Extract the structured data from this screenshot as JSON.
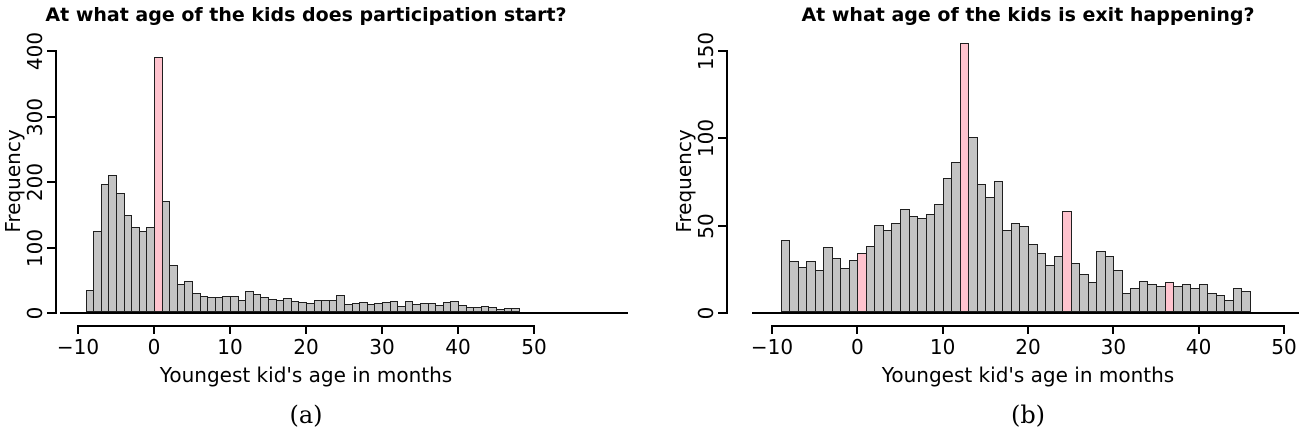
{
  "figure": {
    "background": "#ffffff",
    "text_color": "#000000"
  },
  "chart_data": [
    {
      "type": "bar",
      "subtype": "histogram",
      "title": "At what age of the kids does participation start?",
      "xlabel": "Youngest kid's age in months",
      "ylabel": "Frequency",
      "caption": "(a)",
      "xlim": [
        -10,
        50
      ],
      "ylim": [
        0,
        400
      ],
      "x_ticks": [
        -10,
        0,
        10,
        20,
        30,
        40,
        50
      ],
      "y_ticks": [
        0,
        100,
        200,
        300,
        400
      ],
      "grid": false,
      "legend": false,
      "bin_width": 1,
      "first_bin_start": -9,
      "values": [
        33,
        123,
        196,
        209,
        181,
        148,
        130,
        124,
        130,
        390,
        169,
        71,
        43,
        47,
        29,
        25,
        23,
        23,
        24,
        24,
        19,
        32,
        28,
        23,
        20,
        19,
        22,
        17,
        16,
        13,
        18,
        19,
        18,
        26,
        12,
        14,
        16,
        12,
        14,
        16,
        17,
        9,
        17,
        12,
        14,
        13,
        10,
        15,
        17,
        10,
        7,
        7,
        9,
        8,
        4,
        6,
        6
      ],
      "highlight_bin_starts": [
        0
      ],
      "colors": {
        "bar_fill": "#c4c4c4",
        "bar_border": "#1f1f1f",
        "highlight_fill": "#ffc3ce",
        "axis": "#000000"
      }
    },
    {
      "type": "bar",
      "subtype": "histogram",
      "title": "At what age of the kids is exit happening?",
      "xlabel": "Youngest kid's age in months",
      "ylabel": "Frequency",
      "caption": "(b)",
      "xlim": [
        -10,
        50
      ],
      "ylim": [
        0,
        150
      ],
      "x_ticks": [
        -10,
        0,
        10,
        20,
        30,
        40,
        50
      ],
      "y_ticks": [
        0,
        50,
        100,
        150
      ],
      "grid": false,
      "legend": false,
      "bin_width": 1,
      "first_bin_start": -9,
      "values": [
        41,
        29,
        26,
        29,
        24,
        37,
        31,
        25,
        30,
        34,
        38,
        50,
        47,
        51,
        59,
        55,
        54,
        56,
        62,
        77,
        86,
        154,
        100,
        73,
        66,
        75,
        47,
        51,
        49,
        39,
        34,
        27,
        32,
        58,
        28,
        22,
        17,
        35,
        32,
        24,
        11,
        14,
        18,
        16,
        15,
        17,
        15,
        16,
        14,
        16,
        11,
        10,
        7,
        14,
        12
      ],
      "highlight_bin_starts": [
        0,
        12,
        24,
        36
      ],
      "colors": {
        "bar_fill": "#c4c4c4",
        "bar_border": "#1f1f1f",
        "highlight_fill": "#ffc3ce",
        "axis": "#000000"
      }
    }
  ]
}
